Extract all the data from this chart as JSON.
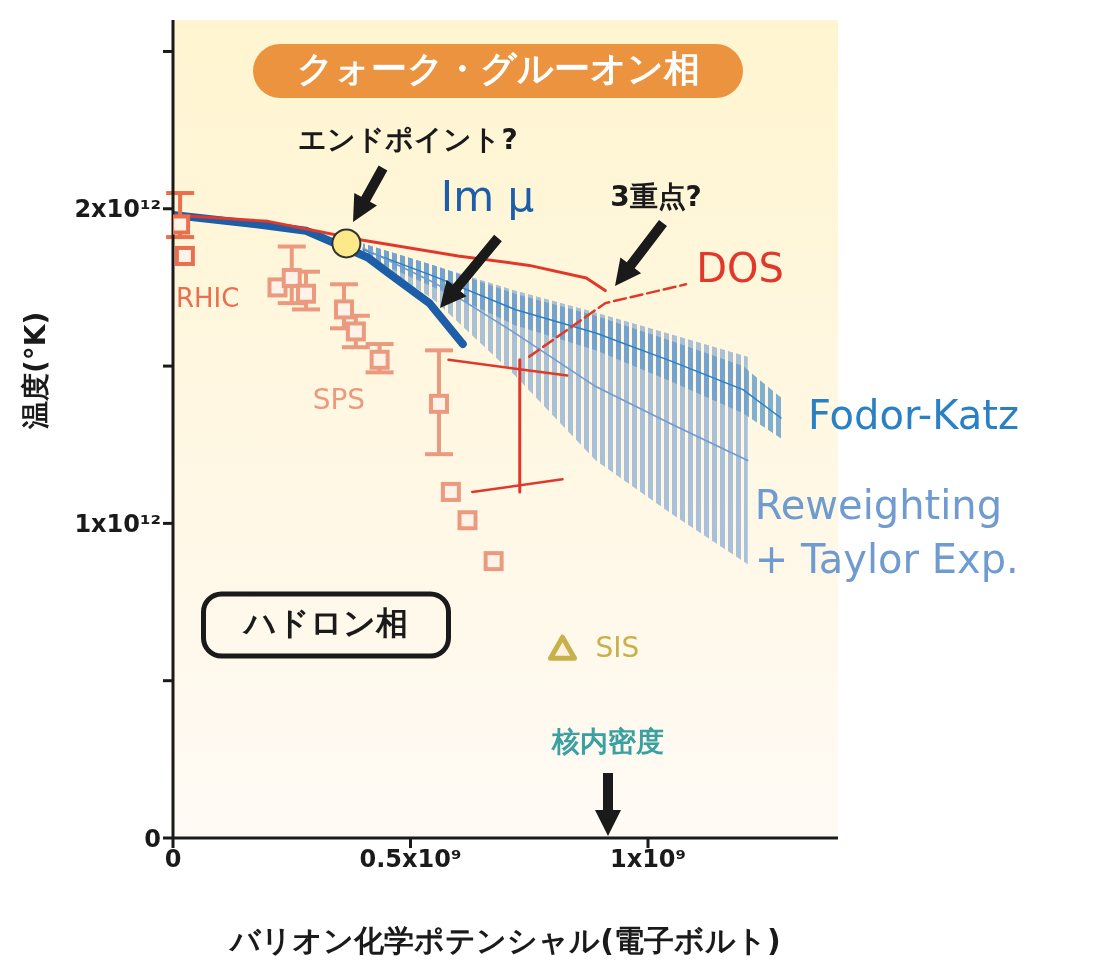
{
  "chart_data": {
    "type": "line",
    "xlabel": "バリオン化学ポテンシャル(電子ボルト)",
    "ylabel": "温度(°K)",
    "xlim": [
      0,
      1400000000.0
    ],
    "xticks": [
      0,
      {
        "value": 500000000.0,
        "label": "0.5x10⁹"
      },
      {
        "value": 1000000000.0,
        "label": "1x10⁹"
      }
    ],
    "ylim": [
      0,
      2600000000000.0
    ],
    "yticks": [
      0,
      {
        "value": 500000000000.0,
        "label": null
      },
      {
        "value": 1000000000000.0,
        "label": "1x10¹²"
      },
      {
        "value": 1500000000000.0,
        "label": null
      },
      {
        "value": 2000000000000.0,
        "label": "2x10¹²"
      },
      {
        "value": 2500000000000.0,
        "label": null
      }
    ],
    "grid": false,
    "legend": false,
    "marker": "none",
    "series": [
      {
        "name": "Fodor-Katz",
        "color": "#2a80c4",
        "x": [
          400000000.0,
          550000000.0,
          720000000.0,
          890000000.0,
          1050000000.0,
          1200000000.0,
          1280000000.0
        ],
        "values": [
          1870000000000.0,
          1785000000000.0,
          1680000000000.0,
          1605000000000.0,
          1515000000000.0,
          1425000000000.0,
          1335000000000.0
        ],
        "lower": [
          1850000000000.0,
          1750000000000.0,
          1630000000000.0,
          1550000000000.0,
          1450000000000.0,
          1350000000000.0,
          1270000000000.0
        ],
        "upper": [
          1890000000000.0,
          1820000000000.0,
          1730000000000.0,
          1660000000000.0,
          1580000000000.0,
          1500000000000.0,
          1400000000000.0
        ]
      },
      {
        "name": "Reweighting + Taylor Exp.",
        "color": "#6f9bd1",
        "x": [
          400000000.0,
          550000000.0,
          720000000.0,
          890000000.0,
          1050000000.0,
          1210000000.0
        ],
        "values": [
          1875000000000.0,
          1765000000000.0,
          1605000000000.0,
          1435000000000.0,
          1315000000000.0,
          1200000000000.0
        ],
        "lower": [
          1860000000000.0,
          1710000000000.0,
          1470000000000.0,
          1200000000000.0,
          1030000000000.0,
          870000000000.0
        ],
        "upper": [
          1890000000000.0,
          1820000000000.0,
          1740000000000.0,
          1670000000000.0,
          1600000000000.0,
          1530000000000.0
        ]
      },
      {
        "name": "Im μ",
        "color": "#1c5fa8",
        "x": [
          0,
          180000000.0,
          280000000.0,
          410000000.0,
          450000000.0,
          540000000.0,
          610000000.0
        ],
        "values": [
          1980000000000.0,
          1950000000000.0,
          1930000000000.0,
          1845000000000.0,
          1800000000000.0,
          1700000000000.0,
          1570000000000.0
        ]
      },
      {
        "name": "DOS",
        "color": "#e0392b",
        "x": [
          0,
          200000000.0,
          400000000.0,
          600000000.0,
          750000000.0,
          870000000.0,
          910000000.0
        ],
        "values": [
          1980000000000.0,
          1960000000000.0,
          1900000000000.0,
          1850000000000.0,
          1820000000000.0,
          1780000000000.0,
          1740000000000.0
        ]
      },
      {
        "color": "#e0392b",
        "line_style": "dashed",
        "x": [
          750000000.0,
          910000000.0,
          1080000000.0
        ],
        "values": [
          1530000000000.0,
          1700000000000.0,
          1760000000000.0
        ]
      },
      {
        "color": "#e0392b",
        "x": [
          580000000.0,
          830000000.0
        ],
        "values": [
          1520000000000.0,
          1470000000000.0
        ]
      },
      {
        "color": "#e0392b",
        "x": [
          630000000.0,
          820000000.0
        ],
        "values": [
          1100000000000.0,
          1140000000000.0
        ]
      },
      {
        "color": "#e0392b",
        "x": [
          730000000.0,
          730000000.0
        ],
        "values": [
          1520000000000.0,
          1100000000000.0
        ]
      },
      {
        "name": "RHIC",
        "type": "scatter",
        "color": "#e8704f",
        "marker": "square",
        "x": [
          15000000.0,
          25000000.0
        ],
        "values": [
          1950000000000.0,
          1850000000000.0
        ],
        "errors": [
          [
            1910000000000.0,
            2050000000000.0
          ],
          null
        ]
      },
      {
        "name": "SPS",
        "type": "scatter",
        "color": "#eb9a80",
        "marker": "square",
        "x": [
          220000000.0,
          250000000.0,
          280000000.0,
          360000000.0,
          385000000.0,
          435000000.0,
          560000000.0,
          585000000.0,
          620000000.0,
          675000000.0
        ],
        "values": [
          1750000000000.0,
          1780000000000.0,
          1730000000000.0,
          1680000000000.0,
          1610000000000.0,
          1520000000000.0,
          1380000000000.0,
          1100000000000.0,
          1010000000000.0,
          880000000000.0
        ],
        "errors": [
          null,
          [
            1700000000000.0,
            1880000000000.0
          ],
          [
            1680000000000.0,
            1800000000000.0
          ],
          [
            1620000000000.0,
            1760000000000.0
          ],
          [
            1560000000000.0,
            1660000000000.0
          ],
          [
            1480000000000.0,
            1570000000000.0
          ],
          [
            1220000000000.0,
            1550000000000.0
          ],
          null,
          null,
          null
        ]
      },
      {
        "name": "SIS",
        "type": "scatter",
        "color": "#c8b04a",
        "marker": "triangle",
        "x": [
          820000000.0
        ],
        "values": [
          600000000000.0
        ]
      },
      {
        "type": "scatter",
        "color": "#fbe98a",
        "marker": "circle",
        "x": [
          365000000.0
        ],
        "values": [
          1890000000000.0
        ]
      }
    ],
    "annotations": [
      "クォーク・グルーオン相",
      "ハドロン相",
      "エンドポイント?",
      "3重点?",
      "核内密度"
    ]
  }
}
